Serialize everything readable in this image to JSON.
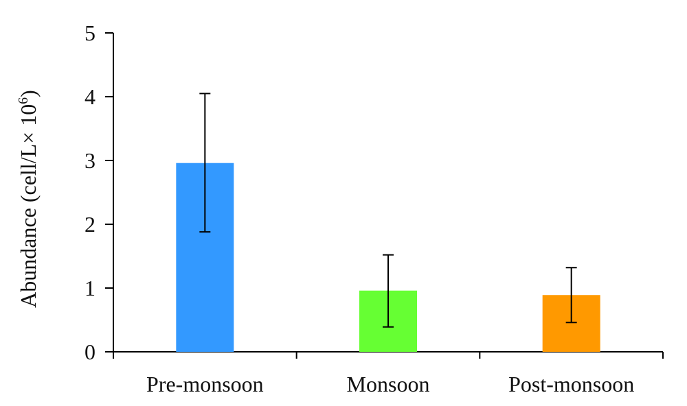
{
  "chart_data": {
    "type": "bar",
    "categories": [
      "Pre-monsoon",
      "Monsoon",
      "Post-monsoon"
    ],
    "values": [
      2.96,
      0.96,
      0.89
    ],
    "error_low": [
      1.88,
      0.39,
      0.46
    ],
    "error_high": [
      4.05,
      1.52,
      1.32
    ],
    "colors": [
      "#3399FF",
      "#66FF33",
      "#FF9900"
    ],
    "ylabel_main": "Abundance (cell/L× 10",
    "ylabel_sup": "6",
    "ylabel_end": ")",
    "ylim": [
      0,
      5
    ],
    "yticks": [
      "0",
      "1",
      "2",
      "3",
      "4",
      "5"
    ],
    "grid": false,
    "legend": "none"
  }
}
